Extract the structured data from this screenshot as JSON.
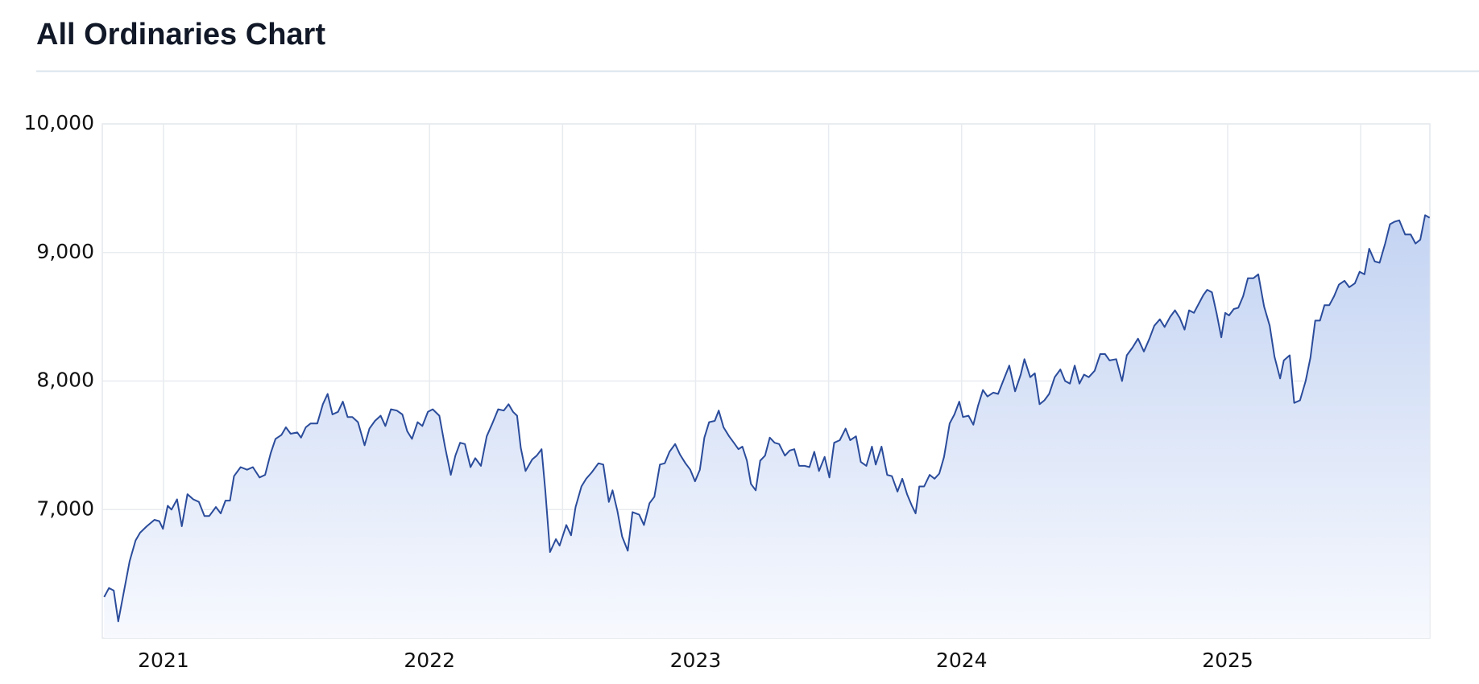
{
  "chart_data": {
    "type": "area",
    "title": "All Ordinaries Chart",
    "color": "#2b4c9b",
    "fill_top": "#c3d3f2",
    "fill_bottom": "#f7f9fe",
    "grid": true,
    "xlim": [
      2020.77,
      2025.76
    ],
    "xticks": [
      2021,
      2022,
      2023,
      2024,
      2025
    ],
    "xminor": [
      2021.5,
      2022.5,
      2023.5,
      2024.5,
      2025.5
    ],
    "ylim": [
      6000,
      10000
    ],
    "yticks": [
      {
        "value": 7000,
        "label": "7,000"
      },
      {
        "value": 8000,
        "label": "8,000"
      },
      {
        "value": 9000,
        "label": "9,000"
      },
      {
        "value": 10000,
        "label": "10,000"
      }
    ],
    "x": [
      2020.777,
      2020.795,
      2020.813,
      2020.83,
      2020.873,
      2020.895,
      2020.912,
      2020.937,
      2020.966,
      2020.984,
      2020.998,
      2021.016,
      2021.03,
      2021.051,
      2021.069,
      2021.09,
      2021.112,
      2021.133,
      2021.154,
      2021.172,
      2021.197,
      2021.215,
      2021.233,
      2021.25,
      2021.265,
      2021.29,
      2021.314,
      2021.336,
      2021.361,
      2021.382,
      2021.403,
      2021.421,
      2021.443,
      2021.46,
      2021.478,
      2021.503,
      2021.517,
      2021.535,
      2021.553,
      2021.578,
      2021.599,
      2021.617,
      2021.635,
      2021.656,
      2021.674,
      2021.692,
      2021.71,
      2021.731,
      2021.756,
      2021.774,
      2021.795,
      2021.816,
      2021.834,
      2021.855,
      2021.877,
      2021.898,
      2021.916,
      2021.934,
      2021.955,
      2021.973,
      2021.994,
      2022.012,
      2022.037,
      2022.058,
      2022.08,
      2022.097,
      2022.115,
      2022.133,
      2022.154,
      2022.172,
      2022.193,
      2022.215,
      2022.236,
      2022.258,
      2022.279,
      2022.297,
      2022.314,
      2022.329,
      2022.343,
      2022.361,
      2022.386,
      2022.403,
      2022.421,
      2022.435,
      2022.453,
      2022.475,
      2022.489,
      2022.514,
      2022.532,
      2022.549,
      2022.571,
      2022.589,
      2022.61,
      2022.635,
      2022.653,
      2022.674,
      2022.688,
      2022.706,
      2022.724,
      2022.745,
      2022.763,
      2022.788,
      2022.806,
      2022.827,
      2022.845,
      2022.866,
      2022.884,
      2022.902,
      2022.923,
      2022.941,
      2022.962,
      2022.98,
      2022.998,
      2023.016,
      2023.033,
      2023.051,
      2023.072,
      2023.087,
      2023.105,
      2023.126,
      2023.144,
      2023.161,
      2023.176,
      2023.193,
      2023.208,
      2023.226,
      2023.243,
      2023.261,
      2023.279,
      2023.297,
      2023.314,
      2023.336,
      2023.354,
      2023.371,
      2023.389,
      2023.411,
      2023.428,
      2023.446,
      2023.464,
      2023.485,
      2023.503,
      2023.521,
      2023.542,
      2023.564,
      2023.581,
      2023.603,
      2023.621,
      2023.642,
      2023.663,
      2023.677,
      2023.699,
      2023.72,
      2023.738,
      2023.759,
      2023.777,
      2023.795,
      2023.813,
      2023.827,
      2023.841,
      2023.859,
      2023.88,
      2023.898,
      2023.916,
      2023.934,
      2023.955,
      2023.973,
      2023.991,
      2024.005,
      2024.026,
      2024.044,
      2024.062,
      2024.08,
      2024.097,
      2024.119,
      2024.137,
      2024.158,
      2024.179,
      2024.201,
      2024.222,
      2024.236,
      2024.258,
      2024.275,
      2024.293,
      2024.311,
      2024.329,
      2024.35,
      2024.371,
      2024.389,
      2024.407,
      2024.425,
      2024.443,
      2024.46,
      2024.478,
      2024.5,
      2024.521,
      2024.539,
      2024.556,
      2024.581,
      2024.603,
      2024.621,
      2024.642,
      2024.663,
      2024.685,
      2024.706,
      2024.724,
      2024.745,
      2024.763,
      2024.784,
      2024.802,
      2024.82,
      2024.838,
      2024.855,
      2024.873,
      2024.891,
      2024.909,
      2024.923,
      2024.941,
      2024.959,
      2024.976,
      2024.991,
      2025.005,
      2025.023,
      2025.04,
      2025.058,
      2025.076,
      2025.097,
      2025.115,
      2025.137,
      2025.158,
      2025.176,
      2025.197,
      2025.211,
      2025.233,
      2025.25,
      2025.272,
      2025.293,
      2025.311,
      2025.329,
      2025.347,
      2025.364,
      2025.382,
      2025.4,
      2025.418,
      2025.439,
      2025.457,
      2025.478,
      2025.496,
      2025.514,
      2025.532,
      2025.553,
      2025.571,
      2025.592,
      2025.61,
      2025.628,
      2025.645,
      2025.667,
      2025.688,
      2025.706,
      2025.724,
      2025.742,
      2025.759
    ],
    "values": [
      6320,
      6390,
      6370,
      6130,
      6600,
      6760,
      6820,
      6870,
      6920,
      6910,
      6850,
      7030,
      7000,
      7080,
      6870,
      7120,
      7080,
      7060,
      6950,
      6950,
      7020,
      6970,
      7070,
      7070,
      7260,
      7330,
      7310,
      7330,
      7250,
      7270,
      7440,
      7550,
      7580,
      7640,
      7590,
      7600,
      7560,
      7640,
      7670,
      7670,
      7820,
      7900,
      7740,
      7760,
      7840,
      7720,
      7720,
      7680,
      7500,
      7630,
      7690,
      7730,
      7650,
      7780,
      7770,
      7740,
      7610,
      7550,
      7680,
      7650,
      7760,
      7780,
      7730,
      7490,
      7270,
      7420,
      7520,
      7510,
      7330,
      7400,
      7340,
      7570,
      7670,
      7780,
      7770,
      7820,
      7760,
      7730,
      7480,
      7300,
      7390,
      7420,
      7470,
      7150,
      6670,
      6770,
      6720,
      6880,
      6800,
      7020,
      7180,
      7240,
      7290,
      7360,
      7350,
      7060,
      7150,
      6990,
      6790,
      6680,
      6980,
      6960,
      6880,
      7050,
      7100,
      7350,
      7360,
      7450,
      7510,
      7430,
      7360,
      7310,
      7220,
      7310,
      7560,
      7680,
      7690,
      7770,
      7640,
      7570,
      7520,
      7470,
      7490,
      7380,
      7200,
      7150,
      7380,
      7420,
      7560,
      7520,
      7510,
      7420,
      7460,
      7470,
      7340,
      7340,
      7330,
      7450,
      7300,
      7410,
      7250,
      7520,
      7540,
      7630,
      7540,
      7570,
      7370,
      7340,
      7490,
      7350,
      7490,
      7270,
      7260,
      7140,
      7240,
      7120,
      7030,
      6970,
      7180,
      7180,
      7270,
      7240,
      7280,
      7410,
      7670,
      7740,
      7840,
      7720,
      7730,
      7660,
      7810,
      7930,
      7880,
      7910,
      7900,
      8010,
      8120,
      7920,
      8050,
      8170,
      8030,
      8060,
      7820,
      7850,
      7900,
      8030,
      8090,
      8000,
      7980,
      8120,
      7980,
      8050,
      8030,
      8080,
      8210,
      8210,
      8160,
      8170,
      8000,
      8200,
      8260,
      8330,
      8230,
      8330,
      8430,
      8480,
      8420,
      8500,
      8550,
      8490,
      8400,
      8550,
      8530,
      8600,
      8670,
      8710,
      8690,
      8520,
      8340,
      8530,
      8510,
      8560,
      8570,
      8660,
      8800,
      8800,
      8830,
      8580,
      8430,
      8190,
      8020,
      8160,
      8200,
      7830,
      7850,
      8000,
      8180,
      8470,
      8470,
      8590,
      8590,
      8660,
      8750,
      8780,
      8730,
      8760,
      8850,
      8830,
      9030,
      8930,
      8920,
      9070,
      9220,
      9240,
      9250,
      9140,
      9140,
      9070,
      9100,
      9290,
      9270
    ]
  }
}
